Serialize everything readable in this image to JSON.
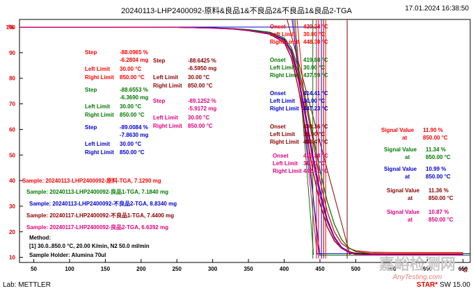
{
  "header": {
    "title": "20240113-LHP2400092-原料&良品1&不良品2&不良品1&良品2-TGA",
    "datetime": "17.01.2024 16:38:50"
  },
  "footer": {
    "lab": "Lab: METTLER",
    "software_star": "STAR",
    "software_version": "SW 15.00"
  },
  "watermark": {
    "main": "嘉峪检测网",
    "sub": "AnyTesting.com"
  },
  "method": {
    "title": "Method:",
    "line1": "[1] 30.0..850.0 °C, 20.00 K/min,  N2 50.0 ml/min",
    "line2": "Sample Holder: Alumina 70ul"
  },
  "colors": {
    "red": "#ff0000",
    "green": "#007a00",
    "blue": "#0000d0",
    "darkred": "#8b0000",
    "magenta": "#e0007f",
    "axis": "#000000"
  },
  "chart_data": {
    "type": "line",
    "title": "20240113-LHP2400092-原料&良品1&不良品2&不良品1&良品2-TGA",
    "xlabel": "°C",
    "ylabel": "%",
    "xlim": [
      30,
      660
    ],
    "ylim": [
      8,
      103
    ],
    "xticks": [
      50,
      100,
      150,
      200,
      250,
      300,
      350,
      400,
      450,
      500,
      550,
      600,
      650
    ],
    "yticks": [
      10,
      20,
      30,
      40,
      50,
      60,
      70,
      80,
      90,
      100
    ],
    "grid": false,
    "series": [
      {
        "name": "Sample: 20240113-LHP2400092-原料-TGA, 7.1290 mg",
        "color": "red",
        "x": [
          30,
          150,
          250,
          300,
          330,
          350,
          380,
          400,
          410,
          420,
          430,
          440,
          450,
          460,
          470,
          480,
          490,
          500,
          520,
          550,
          600,
          650
        ],
        "y": [
          100,
          100,
          99.9,
          99.6,
          99.2,
          98.6,
          97.5,
          95.0,
          91.0,
          82.0,
          70.0,
          56.0,
          40.0,
          28.0,
          20.0,
          15.5,
          13.6,
          12.6,
          12.0,
          11.9,
          11.9,
          11.9
        ]
      },
      {
        "name": "Sample: 20240113-LHP2400092-良品1-TGA, 7.1840 mg",
        "color": "green",
        "x": [
          30,
          150,
          250,
          300,
          330,
          350,
          380,
          400,
          410,
          420,
          430,
          440,
          450,
          460,
          470,
          480,
          490,
          500,
          520,
          550,
          600,
          650
        ],
        "y": [
          100,
          100,
          99.9,
          99.7,
          99.4,
          99.0,
          98.0,
          95.8,
          92.0,
          84.0,
          72.0,
          58.0,
          44.0,
          32.0,
          23.0,
          17.0,
          13.8,
          12.2,
          11.5,
          11.3,
          11.3,
          11.3
        ]
      },
      {
        "name": "Sample: 20240113-LHP2400092-不良品2-TGA, 8.8340 mg",
        "color": "blue",
        "x": [
          30,
          150,
          250,
          300,
          330,
          350,
          380,
          400,
          410,
          420,
          430,
          440,
          450,
          460,
          470,
          480,
          490,
          500,
          520,
          550,
          600,
          650
        ],
        "y": [
          100,
          100,
          99.9,
          99.7,
          99.3,
          98.8,
          97.6,
          95.2,
          90.5,
          80.0,
          66.0,
          50.0,
          36.0,
          25.0,
          18.0,
          14.0,
          12.3,
          11.5,
          11.1,
          11.0,
          11.0,
          11.0
        ]
      },
      {
        "name": "Sample: 20240117-LHP2400092-不良品1-TGA, 7.4400 mg",
        "color": "darkred",
        "x": [
          30,
          150,
          250,
          300,
          330,
          350,
          380,
          400,
          410,
          420,
          430,
          440,
          450,
          460,
          470,
          480,
          490,
          500,
          520,
          550,
          600,
          650
        ],
        "y": [
          100,
          100,
          99.9,
          99.6,
          99.2,
          98.6,
          97.2,
          94.0,
          88.0,
          76.0,
          60.0,
          44.0,
          31.0,
          22.0,
          16.5,
          13.5,
          12.2,
          11.6,
          11.4,
          11.4,
          11.4,
          11.4
        ]
      },
      {
        "name": "Sample: 20240117-LHP2400092-良品2-TGA, 6.6392 mg",
        "color": "magenta",
        "x": [
          30,
          150,
          250,
          300,
          330,
          350,
          380,
          400,
          410,
          420,
          430,
          440,
          450,
          460,
          470,
          480,
          490,
          500,
          520,
          550,
          600,
          650
        ],
        "y": [
          100,
          100,
          99.9,
          99.6,
          99.2,
          98.7,
          97.4,
          94.6,
          89.5,
          79.0,
          64.0,
          48.0,
          34.0,
          24.0,
          17.5,
          13.6,
          11.9,
          11.1,
          10.9,
          10.9,
          10.9,
          10.9
        ]
      }
    ]
  },
  "steps": [
    {
      "color": "red",
      "step": "-88.0965 %",
      "step2": "-6.2804 mg",
      "left": "30.00 °C",
      "right": "850.00 °C"
    },
    {
      "color": "green",
      "step": "-88.6553 %",
      "step2": "-6.3690 mg",
      "left": "30.00 °C",
      "right": "850.00 °C"
    },
    {
      "color": "blue",
      "step": "-89.0084 %",
      "step2": "-7.8630 mg",
      "left": "30.00 °C",
      "right": "850.00 °C"
    },
    {
      "color": "darkred",
      "step": "-88.6425 %",
      "step2": "-6.5950 mg",
      "left": "30.00 °C",
      "right": "850.00 °C"
    },
    {
      "color": "magenta",
      "step": "-89.1252 %",
      "step2": "-5.9172 mg",
      "left": "30.00 °C",
      "right": "850.00 °C"
    }
  ],
  "onsets": [
    {
      "color": "red",
      "onset": "420.24 °C",
      "left": "30.00 °C",
      "right": "448.30 °C"
    },
    {
      "color": "green",
      "onset": "419.88 °C",
      "left": "30.00 °C",
      "right": "437.59 °C"
    },
    {
      "color": "blue",
      "onset": "414.41 °C",
      "left": "30.00 °C",
      "right": "447.23 °C"
    },
    {
      "color": "darkred",
      "onset": "408.36 °C",
      "left": "30.00 °C",
      "right": "488.47 °C"
    },
    {
      "color": "magenta",
      "onset": "418.38 °C",
      "left": "30.00 °C",
      "right": "442.41 °C"
    }
  ],
  "signals": [
    {
      "color": "red",
      "value": "11.90 %",
      "at": "850.00 °C"
    },
    {
      "color": "green",
      "value": "11.34 %",
      "at": "850.00 °C"
    },
    {
      "color": "blue",
      "value": "10.99 %",
      "at": "850.00 °C"
    },
    {
      "color": "darkred",
      "value": "11.36 %",
      "at": "850.00 °C"
    },
    {
      "color": "magenta",
      "value": "10.87 %",
      "at": "850.00 °C"
    }
  ],
  "labels": {
    "step": "Step",
    "left_limit": "Left Limit",
    "right_limit": "Right Limit",
    "onset": "Onset",
    "signal_value": "Signal Value",
    "at": "at"
  }
}
